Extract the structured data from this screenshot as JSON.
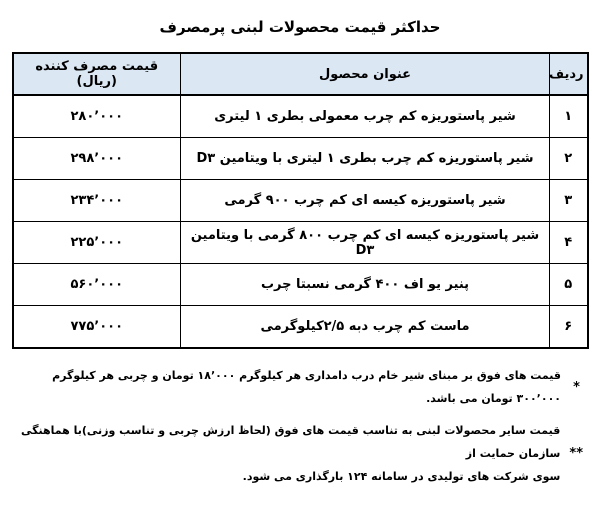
{
  "title": "حداکثر قیمت محصولات لبنی پرمصرف",
  "table": {
    "headers": {
      "row": "ردیف",
      "product": "عنوان محصول",
      "price": "قیمت مصرف کننده (ریال)"
    },
    "rows": [
      {
        "no": "۱",
        "product": "شیر پاستوریزه کم چرب معمولی بطری ۱ لیتری",
        "price": "۲۸۰٬۰۰۰"
      },
      {
        "no": "۲",
        "product": "شیر پاستوریزه کم چرب  بطری ۱ لیتری با ویتامین D۳",
        "price": "۲۹۸٬۰۰۰"
      },
      {
        "no": "۳",
        "product": "شیر پاستوریزه کیسه ای کم چرب ۹۰۰ گرمی",
        "price": "۲۳۴٬۰۰۰"
      },
      {
        "no": "۴",
        "product": "شیر پاستوریزه کیسه ای کم چرب ۸۰۰ گرمی  با ویتامین D۳",
        "price": "۲۲۵٬۰۰۰"
      },
      {
        "no": "۵",
        "product": "پنیر یو اف ۴۰۰ گرمی نسبتا چرب",
        "price": "۵۶۰٬۰۰۰"
      },
      {
        "no": "۶",
        "product": "ماست کم چرب دبه ۲/۵کیلوگرمی",
        "price": "۷۷۵٬۰۰۰"
      }
    ]
  },
  "footnotes": [
    {
      "marker": "*",
      "text": "قیمت های فوق بر مبنای شیر خام درب دامداری هر کیلوگرم ۱۸٬۰۰۰ تومان و چربی هر کیلوگرم ۳۰۰٬۰۰۰ تومان می باشد."
    },
    {
      "marker": "**",
      "text": "قیمت سایر محصولات لبنی به تناسب قیمت های فوق (لحاظ ارزش چربی و تناسب وزنی)با هماهنگی سازمان حمایت از\nسوی شرکت های تولیدی در سامانه ۱۲۴ بارگذاری می شود."
    }
  ],
  "colors": {
    "header_bg": "#dbe7f3",
    "border": "#000000",
    "text": "#000000"
  }
}
